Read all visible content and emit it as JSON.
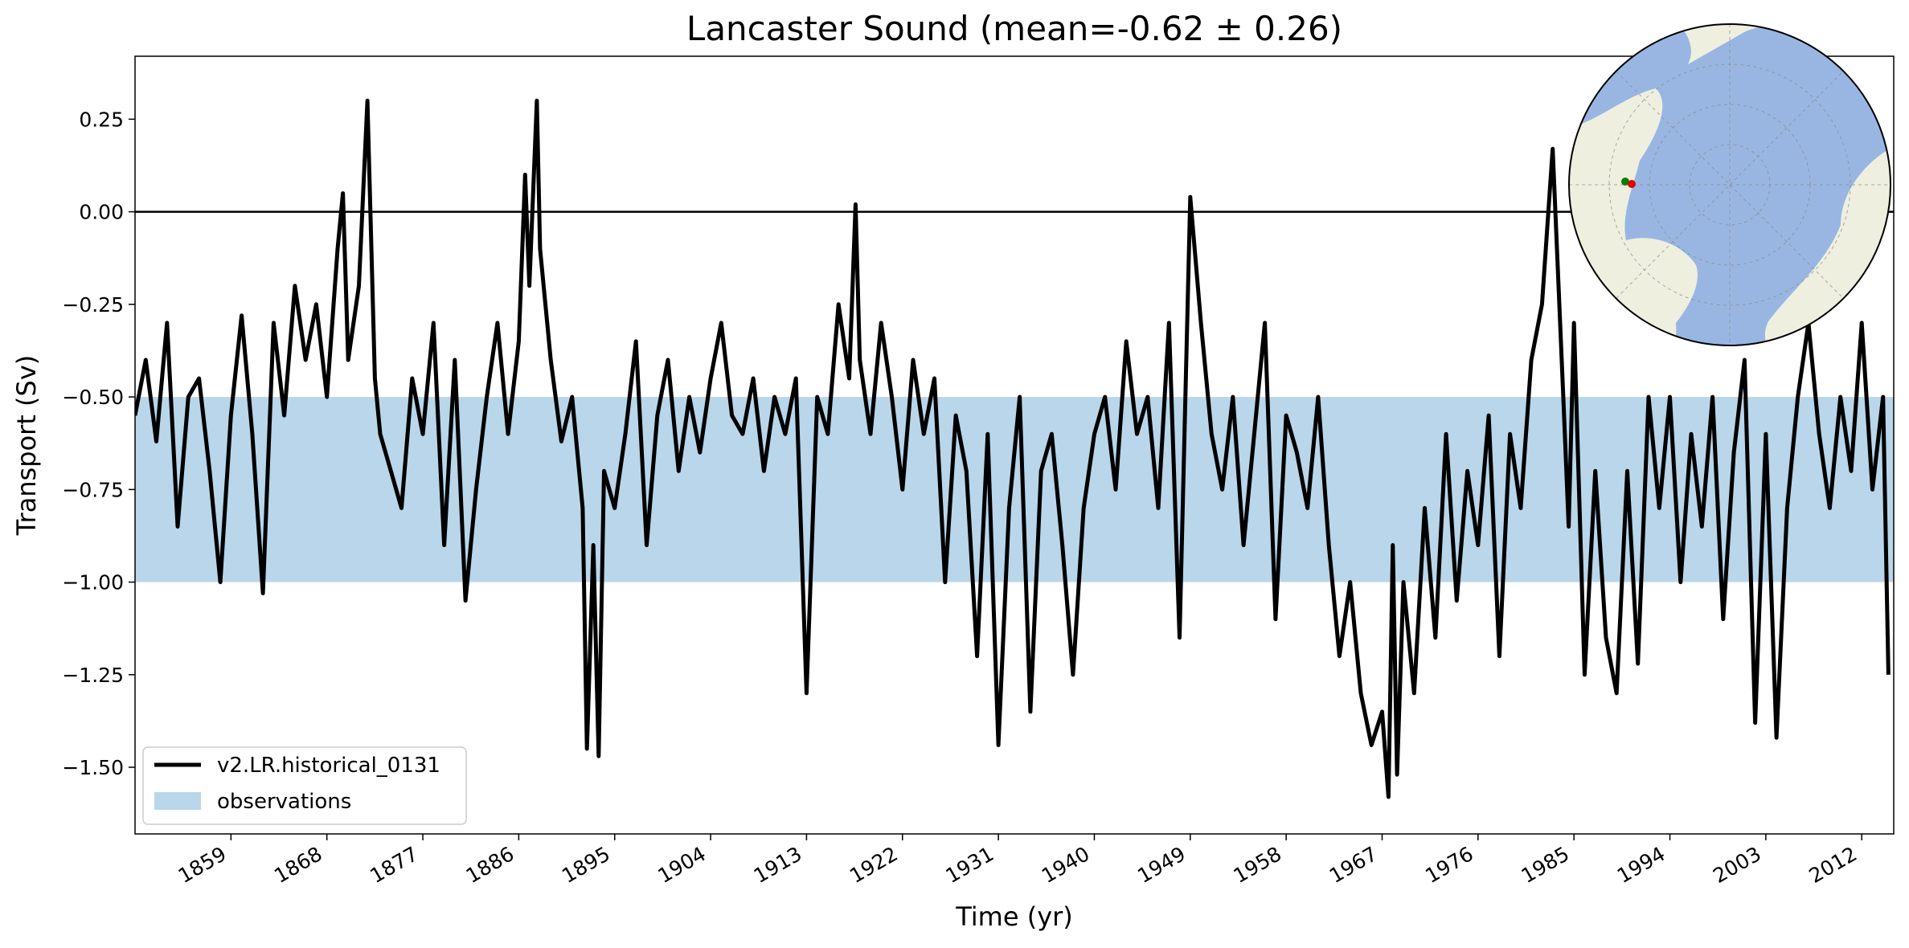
{
  "chart_data": {
    "type": "line",
    "title": "Lancaster Sound (mean=-0.62 ± 0.26)",
    "xlabel": "Time (yr)",
    "ylabel": "Transport (Sv)",
    "xlim": [
      1850,
      2015
    ],
    "ylim": [
      -1.68,
      0.42
    ],
    "x_ticks": [
      1859,
      1868,
      1877,
      1886,
      1895,
      1904,
      1913,
      1922,
      1931,
      1940,
      1949,
      1958,
      1967,
      1976,
      1985,
      1994,
      2003,
      2012
    ],
    "y_ticks": [
      0.25,
      0.0,
      -0.25,
      -0.5,
      -0.75,
      -1.0,
      -1.25,
      -1.5
    ],
    "y_tick_labels": [
      "0.25",
      "0.00",
      "−0.25",
      "−0.50",
      "−0.75",
      "−1.00",
      "−1.25",
      "−1.50"
    ],
    "reference_line": 0.0,
    "observation_band": {
      "name": "observations",
      "min": -1.0,
      "max": -0.5,
      "color": "#b9d6ea"
    },
    "series": [
      {
        "name": "v2.LR.historical_0131",
        "color": "#000000",
        "x": [
          1850.0,
          1851.0,
          1852.0,
          1853.0,
          1854.0,
          1855.0,
          1856.0,
          1857.0,
          1858.0,
          1859.0,
          1860.0,
          1861.0,
          1862.0,
          1863.0,
          1864.0,
          1865.0,
          1866.0,
          1867.0,
          1868.0,
          1869.0,
          1869.5,
          1870.0,
          1871.0,
          1871.8,
          1872.5,
          1873.0,
          1874.0,
          1875.0,
          1876.0,
          1877.0,
          1878.0,
          1879.0,
          1880.0,
          1881.0,
          1882.0,
          1883.0,
          1884.0,
          1885.0,
          1886.0,
          1886.6,
          1887.0,
          1887.7,
          1888.0,
          1889.0,
          1890.0,
          1891.0,
          1892.0,
          1892.4,
          1893.0,
          1893.5,
          1894.0,
          1895.0,
          1896.0,
          1897.0,
          1898.0,
          1899.0,
          1900.0,
          1901.0,
          1902.0,
          1903.0,
          1904.0,
          1905.0,
          1906.0,
          1907.0,
          1908.0,
          1909.0,
          1910.0,
          1911.0,
          1912.0,
          1913.0,
          1914.0,
          1915.0,
          1916.0,
          1917.0,
          1917.6,
          1918.0,
          1919.0,
          1920.0,
          1921.0,
          1922.0,
          1923.0,
          1924.0,
          1925.0,
          1926.0,
          1927.0,
          1928.0,
          1929.0,
          1930.0,
          1931.0,
          1932.0,
          1933.0,
          1934.0,
          1935.0,
          1936.0,
          1937.0,
          1938.0,
          1939.0,
          1940.0,
          1941.0,
          1942.0,
          1943.0,
          1944.0,
          1945.0,
          1946.0,
          1947.0,
          1948.0,
          1949.0,
          1950.0,
          1951.0,
          1952.0,
          1953.0,
          1954.0,
          1955.0,
          1956.0,
          1957.0,
          1958.0,
          1959.0,
          1960.0,
          1961.0,
          1962.0,
          1963.0,
          1964.0,
          1965.0,
          1966.0,
          1967.0,
          1967.6,
          1968.0,
          1968.4,
          1969.0,
          1970.0,
          1971.0,
          1972.0,
          1973.0,
          1974.0,
          1975.0,
          1976.0,
          1977.0,
          1978.0,
          1979.0,
          1980.0,
          1981.0,
          1982.0,
          1983.0,
          1984.0,
          1984.5,
          1985.0,
          1986.0,
          1987.0,
          1988.0,
          1989.0,
          1990.0,
          1991.0,
          1992.0,
          1993.0,
          1994.0,
          1995.0,
          1996.0,
          1997.0,
          1998.0,
          1999.0,
          2000.0,
          2001.0,
          2002.0,
          2003.0,
          2004.0,
          2005.0,
          2006.0,
          2007.0,
          2008.0,
          2009.0,
          2010.0,
          2011.0,
          2012.0,
          2013.0,
          2014.0,
          2014.5
        ],
        "y": [
          -0.55,
          -0.4,
          -0.62,
          -0.3,
          -0.85,
          -0.5,
          -0.45,
          -0.7,
          -1.0,
          -0.55,
          -0.28,
          -0.6,
          -1.03,
          -0.3,
          -0.55,
          -0.2,
          -0.4,
          -0.25,
          -0.5,
          -0.1,
          0.05,
          -0.4,
          -0.2,
          0.3,
          -0.45,
          -0.6,
          -0.7,
          -0.8,
          -0.45,
          -0.6,
          -0.3,
          -0.9,
          -0.4,
          -1.05,
          -0.75,
          -0.5,
          -0.3,
          -0.6,
          -0.35,
          0.1,
          -0.2,
          0.3,
          -0.1,
          -0.4,
          -0.62,
          -0.5,
          -0.8,
          -1.45,
          -0.9,
          -1.47,
          -0.7,
          -0.8,
          -0.6,
          -0.35,
          -0.9,
          -0.55,
          -0.4,
          -0.7,
          -0.5,
          -0.65,
          -0.45,
          -0.3,
          -0.55,
          -0.6,
          -0.45,
          -0.7,
          -0.5,
          -0.6,
          -0.45,
          -1.3,
          -0.5,
          -0.6,
          -0.25,
          -0.45,
          0.02,
          -0.4,
          -0.6,
          -0.3,
          -0.5,
          -0.75,
          -0.4,
          -0.6,
          -0.45,
          -1.0,
          -0.55,
          -0.7,
          -1.2,
          -0.6,
          -1.44,
          -0.8,
          -0.5,
          -1.35,
          -0.7,
          -0.6,
          -0.9,
          -1.25,
          -0.8,
          -0.6,
          -0.5,
          -0.75,
          -0.35,
          -0.6,
          -0.5,
          -0.8,
          -0.3,
          -1.15,
          0.04,
          -0.3,
          -0.6,
          -0.75,
          -0.5,
          -0.9,
          -0.6,
          -0.3,
          -1.1,
          -0.55,
          -0.65,
          -0.8,
          -0.5,
          -0.9,
          -1.2,
          -1.0,
          -1.3,
          -1.44,
          -1.35,
          -1.58,
          -0.9,
          -1.52,
          -1.0,
          -1.3,
          -0.8,
          -1.15,
          -0.6,
          -1.05,
          -0.7,
          -0.9,
          -0.55,
          -1.2,
          -0.6,
          -0.8,
          -0.4,
          -0.25,
          0.17,
          -0.5,
          -0.85,
          -0.3,
          -1.25,
          -0.7,
          -1.15,
          -1.3,
          -0.7,
          -1.22,
          -0.5,
          -0.8,
          -0.5,
          -1.0,
          -0.6,
          -0.85,
          -0.5,
          -1.1,
          -0.65,
          -0.4,
          -1.38,
          -0.6,
          -1.42,
          -0.8,
          -0.5,
          -0.3,
          -0.6,
          -0.8,
          -0.5,
          -0.7,
          -0.3,
          -0.75,
          -0.5,
          -1.25
        ]
      }
    ],
    "legend": {
      "position": "lower-left",
      "entries": [
        "v2.LR.historical_0131",
        "observations"
      ]
    },
    "inset_map": {
      "description_visible": "Arctic polar map inset",
      "ocean_color": "#99b6e3",
      "land_color": "#efefdf",
      "markers": [
        {
          "name": "green-dot",
          "color": "#008000"
        },
        {
          "name": "red-dot",
          "color": "#e00000"
        }
      ]
    }
  }
}
